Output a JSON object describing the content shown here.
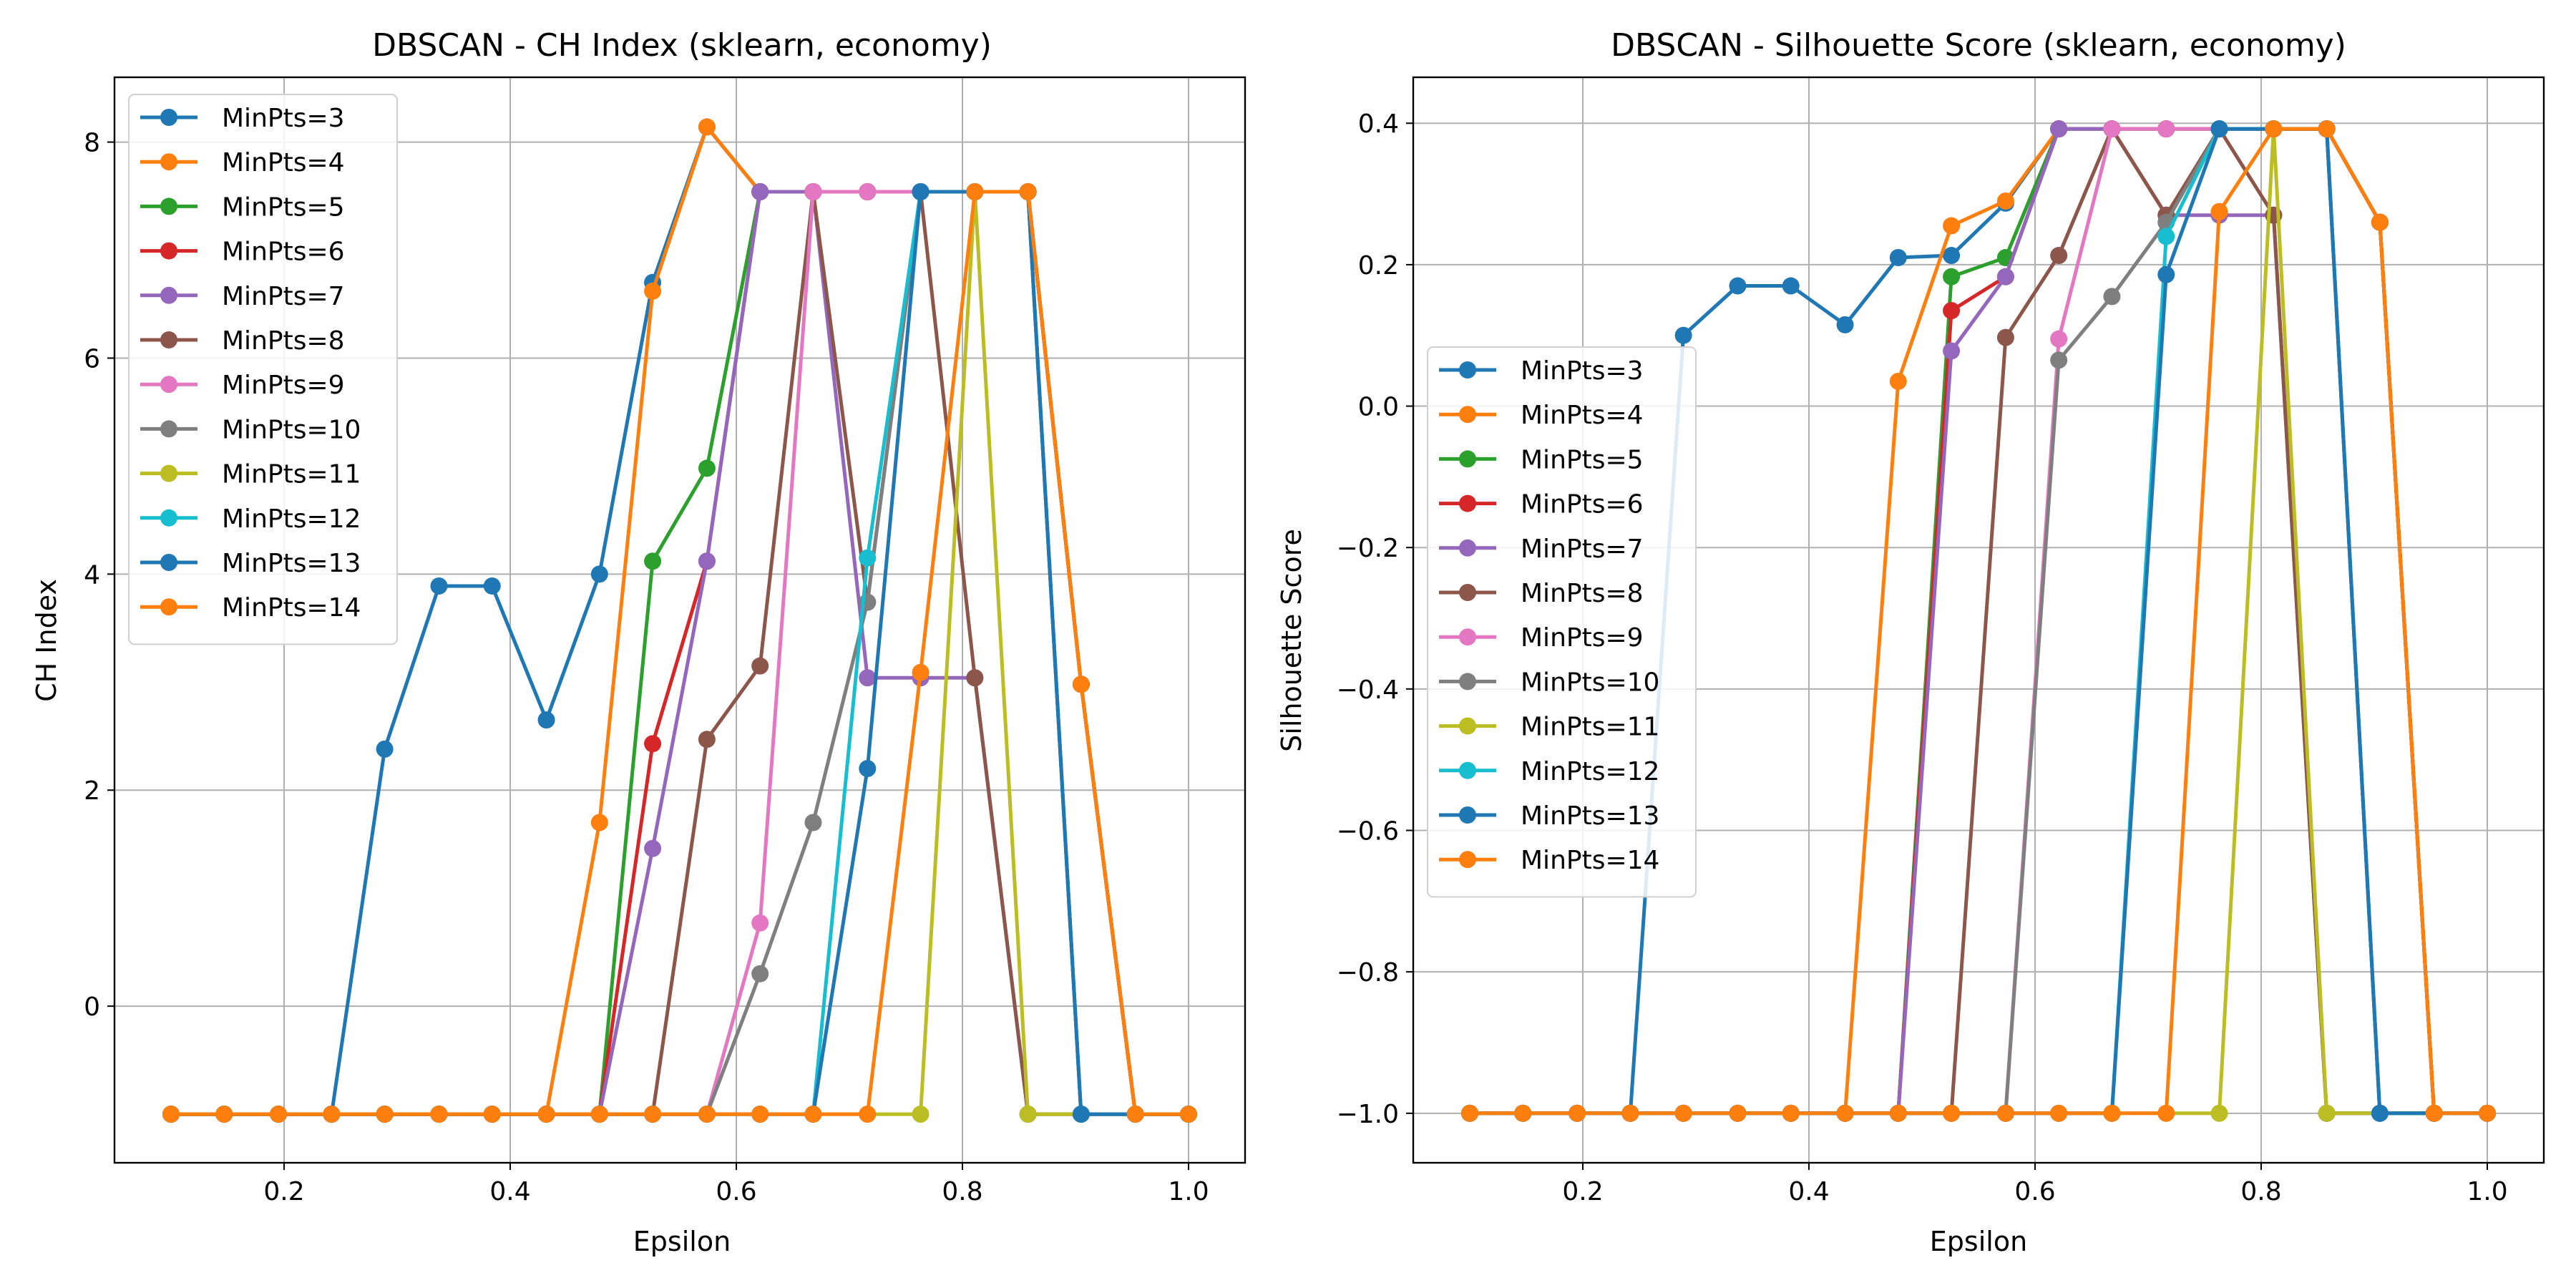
{
  "chart_data": [
    {
      "type": "line",
      "title": "DBSCAN - CH Index (sklearn, economy)",
      "xlabel": "Epsilon",
      "ylabel": "CH Index",
      "xlim": [
        0.05,
        1.05
      ],
      "ylim": [
        -1.45,
        8.6
      ],
      "xticks": [
        0.2,
        0.4,
        0.6,
        0.8,
        1.0
      ],
      "xtick_labels": [
        "0.2",
        "0.4",
        "0.6",
        "0.8",
        "1.0"
      ],
      "yticks": [
        0,
        2,
        4,
        6,
        8
      ],
      "ytick_labels": [
        "0",
        "2",
        "4",
        "6",
        "8"
      ],
      "grid": true,
      "legend_position": "upper-left",
      "x": [
        0.1,
        0.147,
        0.195,
        0.242,
        0.289,
        0.337,
        0.384,
        0.432,
        0.479,
        0.526,
        0.574,
        0.621,
        0.668,
        0.716,
        0.763,
        0.811,
        0.858,
        0.905,
        0.953,
        1.0
      ],
      "series": [
        {
          "name": "MinPts=3",
          "color": "#1f77b4",
          "values": [
            -1,
            -1,
            -1,
            -1,
            2.38,
            3.89,
            3.89,
            2.65,
            4.0,
            6.7,
            8.14,
            7.54,
            7.54,
            7.54,
            7.54,
            7.54,
            7.54,
            2.98,
            -1,
            -1
          ]
        },
        {
          "name": "MinPts=4",
          "color": "#ff7f0e",
          "values": [
            -1,
            -1,
            -1,
            -1,
            -1,
            -1,
            -1,
            -1,
            1.7,
            6.62,
            8.14,
            7.54,
            7.54,
            7.54,
            7.54,
            7.54,
            7.54,
            2.98,
            -1,
            -1
          ]
        },
        {
          "name": "MinPts=5",
          "color": "#2ca02c",
          "values": [
            -1,
            -1,
            -1,
            -1,
            -1,
            -1,
            -1,
            -1,
            -1,
            4.12,
            4.98,
            7.54,
            7.54,
            7.54,
            7.54,
            7.54,
            7.54,
            2.98,
            -1,
            -1
          ]
        },
        {
          "name": "MinPts=6",
          "color": "#d62728",
          "values": [
            -1,
            -1,
            -1,
            -1,
            -1,
            -1,
            -1,
            -1,
            -1,
            2.43,
            4.12,
            7.54,
            7.54,
            7.54,
            7.54,
            7.54,
            7.54,
            2.98,
            -1,
            -1
          ]
        },
        {
          "name": "MinPts=7",
          "color": "#9467bd",
          "values": [
            -1,
            -1,
            -1,
            -1,
            -1,
            -1,
            -1,
            -1,
            -1,
            1.46,
            4.12,
            7.54,
            7.54,
            3.04,
            3.04,
            3.04,
            -1,
            -1,
            -1,
            -1
          ]
        },
        {
          "name": "MinPts=8",
          "color": "#8c564b",
          "values": [
            -1,
            -1,
            -1,
            -1,
            -1,
            -1,
            -1,
            -1,
            -1,
            -1,
            2.47,
            3.15,
            7.54,
            3.74,
            7.54,
            3.04,
            -1,
            -1,
            -1,
            -1
          ]
        },
        {
          "name": "MinPts=9",
          "color": "#e377c2",
          "values": [
            -1,
            -1,
            -1,
            -1,
            -1,
            -1,
            -1,
            -1,
            -1,
            -1,
            -1,
            0.77,
            7.54,
            7.54,
            7.54,
            7.54,
            7.54,
            -1,
            -1,
            -1
          ]
        },
        {
          "name": "MinPts=10",
          "color": "#7f7f7f",
          "values": [
            -1,
            -1,
            -1,
            -1,
            -1,
            -1,
            -1,
            -1,
            -1,
            -1,
            -1,
            0.3,
            1.7,
            3.74,
            7.54,
            7.54,
            7.54,
            -1,
            -1,
            -1
          ]
        },
        {
          "name": "MinPts=11",
          "color": "#bcbd22",
          "values": [
            -1,
            -1,
            -1,
            -1,
            -1,
            -1,
            -1,
            -1,
            -1,
            -1,
            -1,
            -1,
            -1,
            -1,
            -1,
            7.54,
            -1,
            -1,
            -1,
            -1
          ]
        },
        {
          "name": "MinPts=12",
          "color": "#17becf",
          "values": [
            -1,
            -1,
            -1,
            -1,
            -1,
            -1,
            -1,
            -1,
            -1,
            -1,
            -1,
            -1,
            -1,
            4.15,
            7.54,
            7.54,
            7.54,
            -1,
            -1,
            -1
          ]
        },
        {
          "name": "MinPts=13",
          "color": "#1f77b4",
          "values": [
            -1,
            -1,
            -1,
            -1,
            -1,
            -1,
            -1,
            -1,
            -1,
            -1,
            -1,
            -1,
            -1,
            2.2,
            7.54,
            7.54,
            7.54,
            -1,
            -1,
            -1
          ]
        },
        {
          "name": "MinPts=14",
          "color": "#ff7f0e",
          "values": [
            -1,
            -1,
            -1,
            -1,
            -1,
            -1,
            -1,
            -1,
            -1,
            -1,
            -1,
            -1,
            -1,
            -1,
            3.09,
            7.54,
            7.54,
            2.98,
            -1,
            -1
          ]
        }
      ]
    },
    {
      "type": "line",
      "title": "DBSCAN - Silhouette Score (sklearn, economy)",
      "xlabel": "Epsilon",
      "ylabel": "Silhouette Score",
      "xlim": [
        0.05,
        1.05
      ],
      "ylim": [
        -1.07,
        0.465
      ],
      "xticks": [
        0.2,
        0.4,
        0.6,
        0.8,
        1.0
      ],
      "xtick_labels": [
        "0.2",
        "0.4",
        "0.6",
        "0.8",
        "1.0"
      ],
      "yticks": [
        -1.0,
        -0.8,
        -0.6,
        -0.4,
        -0.2,
        0.0,
        0.2,
        0.4
      ],
      "ytick_labels": [
        "−1.0",
        "−0.8",
        "−0.6",
        "−0.4",
        "−0.2",
        "0.0",
        "0.2",
        "0.4"
      ],
      "grid": true,
      "legend_position": "center-left",
      "x": [
        0.1,
        0.147,
        0.195,
        0.242,
        0.289,
        0.337,
        0.384,
        0.432,
        0.479,
        0.526,
        0.574,
        0.621,
        0.668,
        0.716,
        0.763,
        0.811,
        0.858,
        0.905,
        0.953,
        1.0
      ],
      "series": [
        {
          "name": "MinPts=3",
          "color": "#1f77b4",
          "values": [
            -1,
            -1,
            -1,
            -1,
            0.1,
            0.17,
            0.17,
            0.115,
            0.21,
            0.213,
            0.287,
            0.392,
            0.392,
            0.392,
            0.392,
            0.392,
            0.392,
            0.26,
            -1,
            -1
          ]
        },
        {
          "name": "MinPts=4",
          "color": "#ff7f0e",
          "values": [
            -1,
            -1,
            -1,
            -1,
            -1,
            -1,
            -1,
            -1,
            0.035,
            0.255,
            0.29,
            0.392,
            0.392,
            0.392,
            0.392,
            0.392,
            0.392,
            0.26,
            -1,
            -1
          ]
        },
        {
          "name": "MinPts=5",
          "color": "#2ca02c",
          "values": [
            -1,
            -1,
            -1,
            -1,
            -1,
            -1,
            -1,
            -1,
            -1,
            0.183,
            0.21,
            0.392,
            0.392,
            0.392,
            0.392,
            0.392,
            0.392,
            0.26,
            -1,
            -1
          ]
        },
        {
          "name": "MinPts=6",
          "color": "#d62728",
          "values": [
            -1,
            -1,
            -1,
            -1,
            -1,
            -1,
            -1,
            -1,
            -1,
            0.135,
            0.183,
            0.392,
            0.392,
            0.392,
            0.392,
            0.392,
            0.392,
            0.26,
            -1,
            -1
          ]
        },
        {
          "name": "MinPts=7",
          "color": "#9467bd",
          "values": [
            -1,
            -1,
            -1,
            -1,
            -1,
            -1,
            -1,
            -1,
            -1,
            0.078,
            0.183,
            0.392,
            0.392,
            0.27,
            0.27,
            0.27,
            -1,
            -1,
            -1,
            -1
          ]
        },
        {
          "name": "MinPts=8",
          "color": "#8c564b",
          "values": [
            -1,
            -1,
            -1,
            -1,
            -1,
            -1,
            -1,
            -1,
            -1,
            -1,
            0.097,
            0.213,
            0.392,
            0.27,
            0.392,
            0.27,
            -1,
            -1,
            -1,
            -1
          ]
        },
        {
          "name": "MinPts=9",
          "color": "#e377c2",
          "values": [
            -1,
            -1,
            -1,
            -1,
            -1,
            -1,
            -1,
            -1,
            -1,
            -1,
            -1,
            0.095,
            0.392,
            0.392,
            0.392,
            0.392,
            0.392,
            -1,
            -1,
            -1
          ]
        },
        {
          "name": "MinPts=10",
          "color": "#7f7f7f",
          "values": [
            -1,
            -1,
            -1,
            -1,
            -1,
            -1,
            -1,
            -1,
            -1,
            -1,
            -1,
            0.065,
            0.155,
            0.26,
            0.392,
            0.392,
            0.392,
            -1,
            -1,
            -1
          ]
        },
        {
          "name": "MinPts=11",
          "color": "#bcbd22",
          "values": [
            -1,
            -1,
            -1,
            -1,
            -1,
            -1,
            -1,
            -1,
            -1,
            -1,
            -1,
            -1,
            -1,
            -1,
            -1,
            0.392,
            -1,
            -1,
            -1,
            -1
          ]
        },
        {
          "name": "MinPts=12",
          "color": "#17becf",
          "values": [
            -1,
            -1,
            -1,
            -1,
            -1,
            -1,
            -1,
            -1,
            -1,
            -1,
            -1,
            -1,
            -1,
            0.24,
            0.392,
            0.392,
            0.392,
            -1,
            -1,
            -1
          ]
        },
        {
          "name": "MinPts=13",
          "color": "#1f77b4",
          "values": [
            -1,
            -1,
            -1,
            -1,
            -1,
            -1,
            -1,
            -1,
            -1,
            -1,
            -1,
            -1,
            -1,
            0.186,
            0.392,
            0.392,
            0.392,
            -1,
            -1,
            -1
          ]
        },
        {
          "name": "MinPts=14",
          "color": "#ff7f0e",
          "values": [
            -1,
            -1,
            -1,
            -1,
            -1,
            -1,
            -1,
            -1,
            -1,
            -1,
            -1,
            -1,
            -1,
            -1,
            0.275,
            0.392,
            0.392,
            0.26,
            -1,
            -1
          ]
        }
      ]
    }
  ]
}
